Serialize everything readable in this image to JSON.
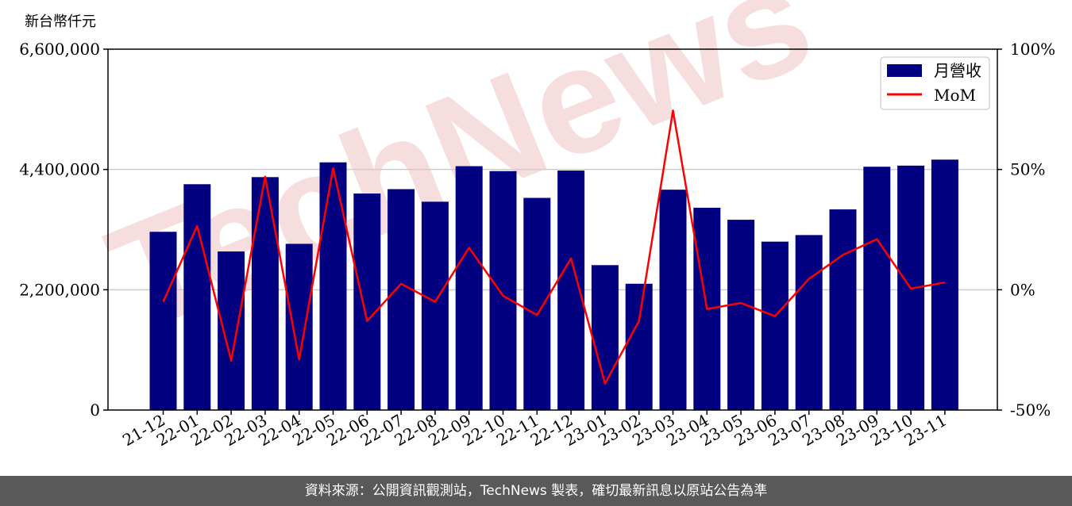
{
  "footer": {
    "text": "資料來源：公開資訊觀測站，TechNews 製表，確切最新訊息以原站公告為準"
  },
  "watermark": {
    "text": "TechNews",
    "color": "#f2c4c4"
  },
  "chart_data": {
    "type": "bar",
    "unit_label": "新台幣仟元",
    "categories": [
      "21-12",
      "22-01",
      "22-02",
      "22-03",
      "22-04",
      "22-05",
      "22-06",
      "22-07",
      "22-08",
      "22-09",
      "22-10",
      "22-11",
      "22-12",
      "23-01",
      "23-02",
      "23-03",
      "23-04",
      "23-05",
      "23-06",
      "23-07",
      "23-08",
      "23-09",
      "23-10",
      "23-11"
    ],
    "series": [
      {
        "name": "月營收",
        "kind": "bar",
        "axis": "left",
        "color": "#000080",
        "values": [
          3260000,
          4130000,
          2900000,
          4260000,
          3040000,
          4530000,
          3960000,
          4040000,
          3810000,
          4460000,
          4370000,
          3880000,
          4380000,
          2650000,
          2310000,
          4030000,
          3700000,
          3480000,
          3080000,
          3200000,
          3670000,
          4450000,
          4470000,
          4580000
        ]
      },
      {
        "name": "MoM",
        "kind": "line",
        "axis": "right",
        "color": "#ff0000",
        "values": [
          -5,
          26.5,
          -29.5,
          47,
          -29,
          50.5,
          -13,
          2.5,
          -5,
          17.5,
          -2.5,
          -10.5,
          13,
          -39,
          -13,
          74.5,
          -8,
          -5.5,
          -11,
          4.5,
          14.5,
          21,
          0.5,
          3
        ]
      }
    ],
    "y_left": {
      "range": [
        0,
        6600000
      ],
      "ticks": [
        0,
        2200000,
        4400000,
        6600000
      ],
      "tick_labels": [
        "0",
        "2,200,000",
        "4,400,000",
        "6,600,000"
      ]
    },
    "y_right": {
      "range": [
        -50,
        100
      ],
      "ticks": [
        -50,
        0,
        50,
        100
      ],
      "tick_labels": [
        "-50%",
        "0%",
        "50%",
        "100%"
      ]
    },
    "grid": "horizontal",
    "legend": {
      "placement": "top-right"
    }
  }
}
